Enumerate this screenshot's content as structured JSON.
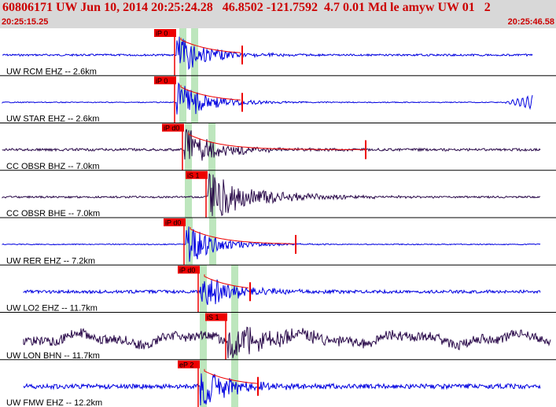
{
  "header": {
    "title": "60806171 UW Jun 10, 2014 20:25:24.28   46.8502 -121.7592  4.7 0.01 Md le amyw UW 01   2",
    "start_time": "20:25:15.25",
    "end_time": "20:25:46.58"
  },
  "colors": {
    "blue_trace": "#0000e0",
    "dark_trace": "#2a0a4a",
    "pick_box": "#ee0000",
    "window_band": "#bde6bd"
  },
  "channels": [
    {
      "label": "UW RCM EHZ -- 2.6km",
      "pick": "iP 0",
      "trace_color": "blue"
    },
    {
      "label": "UW STAR EHZ -- 2.6km",
      "pick": "iP 0",
      "trace_color": "blue"
    },
    {
      "label": "CC OBSR BHZ -- 7.0km",
      "pick": "iP d0",
      "trace_color": "dark"
    },
    {
      "label": "CC OBSR BHE -- 7.0km",
      "pick": "iS 1",
      "trace_color": "dark"
    },
    {
      "label": "UW RER EHZ -- 7.2km",
      "pick": "iP d0",
      "trace_color": "blue"
    },
    {
      "label": "UW LO2 EHZ -- 11.7km",
      "pick": "iP d0",
      "trace_color": "blue"
    },
    {
      "label": "UW LON BHN -- 11.7km",
      "pick": "iS 1",
      "trace_color": "dark"
    },
    {
      "label": "UW FMW EHZ -- 12.2km",
      "pick": "eP 2",
      "trace_color": "blue"
    }
  ]
}
